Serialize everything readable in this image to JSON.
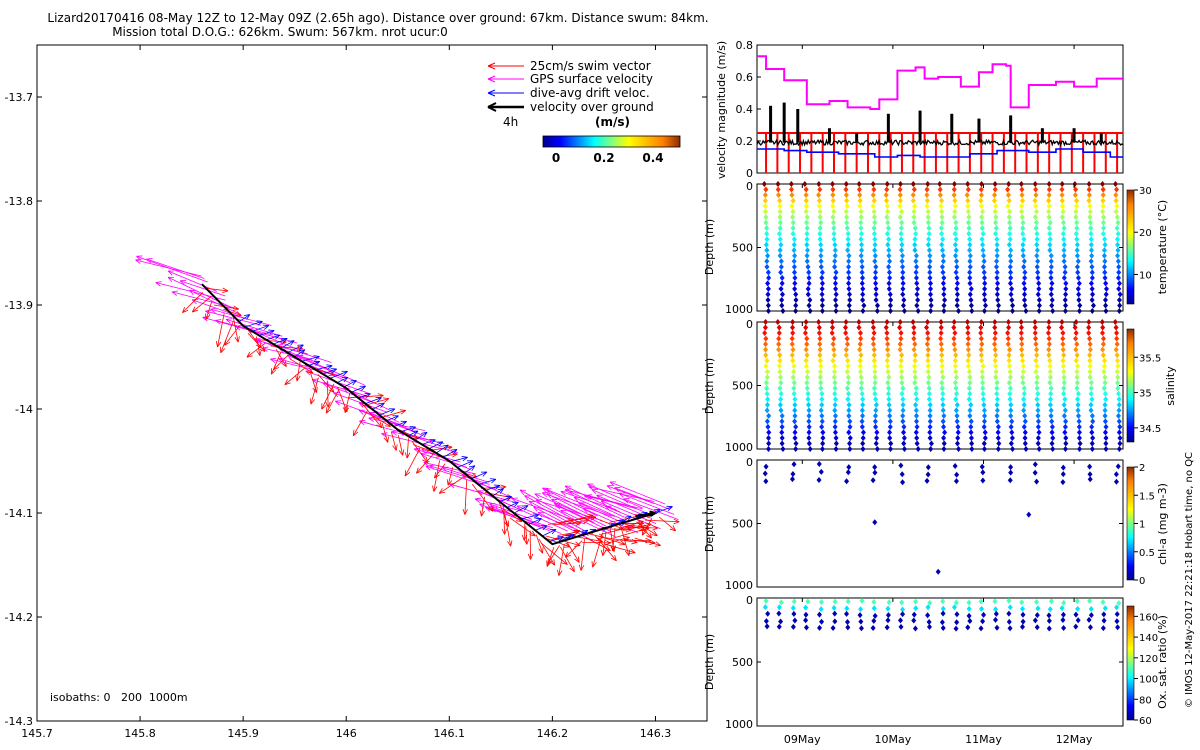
{
  "title": {
    "line1": "Lizard20170416 08-May 12Z to 12-May 09Z (2.65h ago). Distance over ground: 67km. Distance swum: 84km.",
    "line2": "Mission total D.O.G.: 626km. Swum: 567km. nrot ucur:0"
  },
  "map": {
    "legend": {
      "swim": "25cm/s swim vector",
      "gps": "GPS surface velocity",
      "drift": "dive-avg drift veloc.",
      "vog": "velocity over ground",
      "interval": "4h",
      "colorbar_unit": "(m/s)",
      "colorbar_ticks": [
        "0",
        "0.2",
        "0.4"
      ]
    },
    "isobaths_label": "isobaths: 0   200  1000m",
    "colors": {
      "swim": "#ff0000",
      "gps": "#ff00ff",
      "drift": "#0000ff",
      "vog": "#000000"
    }
  },
  "right_labels": {
    "vel_ylabel": "velocity magnitude (m/s)",
    "depth_ylabel": "Depth (m)",
    "temp_cbar": "temperature (°C)",
    "sal_cbar": "salinity",
    "chl_cbar": "chl-a (mg m-3)",
    "ox_cbar": "Ox. sat. ratio (%)",
    "footer": "© IMOS 12-May-2017 22:21:18 Hobart time, no QC"
  },
  "chart_data": [
    {
      "type": "vector-track",
      "name": "map",
      "xlim": [
        145.7,
        146.35
      ],
      "ylim": [
        -14.3,
        -13.65
      ],
      "xticks": [
        145.7,
        145.8,
        145.9,
        146,
        146.1,
        146.2,
        146.3
      ],
      "xtick_labels": [
        "145.7",
        "145.8",
        "145.9",
        "146",
        "146.1",
        "146.2",
        "146.3"
      ],
      "yticks": [
        -13.7,
        -13.8,
        -13.9,
        -14,
        -14.1,
        -14.2,
        -14.3
      ],
      "ytick_labels": [
        "-13.7",
        "-13.8",
        "-13.9",
        "-14",
        "-14.1",
        "-14.2",
        "-14.3"
      ],
      "track": [
        [
          145.86,
          -13.88
        ],
        [
          145.9,
          -13.92
        ],
        [
          145.95,
          -13.95
        ],
        [
          146.0,
          -13.98
        ],
        [
          146.05,
          -14.02
        ],
        [
          146.1,
          -14.05
        ],
        [
          146.15,
          -14.09
        ],
        [
          146.2,
          -14.13
        ],
        [
          146.25,
          -14.115
        ],
        [
          146.3,
          -14.1
        ]
      ]
    },
    {
      "type": "line",
      "name": "velocity magnitude",
      "xlim": [
        0,
        4.04
      ],
      "xtick_pos": [
        0.5,
        1.5,
        2.5,
        3.5
      ],
      "xtick_labels": [
        "09May",
        "10May",
        "11May",
        "12May"
      ],
      "ylim": [
        0,
        0.8
      ],
      "yticks": [
        0,
        0.2,
        0.4,
        0.6,
        0.8
      ],
      "ytick_labels": [
        "0",
        "0.2",
        "0.4",
        "0.6",
        "0.8"
      ],
      "series": [
        {
          "color": "#ff00ff",
          "x": [
            0,
            0.1,
            0.1,
            0.3,
            0.3,
            0.55,
            0.55,
            0.8,
            0.8,
            1.0,
            1.0,
            1.25,
            1.25,
            1.35,
            1.35,
            1.55,
            1.55,
            1.75,
            1.75,
            1.85,
            1.85,
            2.0,
            2.0,
            2.25,
            2.25,
            2.45,
            2.45,
            2.6,
            2.6,
            2.75,
            2.75,
            2.8,
            2.8,
            3.0,
            3.0,
            3.3,
            3.3,
            3.5,
            3.5,
            3.75,
            3.75,
            4.04
          ],
          "y": [
            0.73,
            0.73,
            0.65,
            0.65,
            0.58,
            0.58,
            0.43,
            0.43,
            0.45,
            0.45,
            0.41,
            0.41,
            0.4,
            0.4,
            0.46,
            0.46,
            0.64,
            0.64,
            0.66,
            0.66,
            0.59,
            0.59,
            0.6,
            0.6,
            0.54,
            0.54,
            0.63,
            0.63,
            0.68,
            0.68,
            0.67,
            0.67,
            0.41,
            0.41,
            0.55,
            0.55,
            0.57,
            0.57,
            0.54,
            0.54,
            0.59,
            0.59
          ]
        },
        {
          "color": "#0000ff",
          "x": [
            0,
            0.3,
            0.3,
            0.55,
            0.55,
            0.9,
            0.9,
            1.3,
            1.3,
            1.55,
            1.55,
            1.8,
            1.8,
            2.35,
            2.35,
            2.65,
            2.65,
            3.0,
            3.0,
            3.3,
            3.3,
            3.6,
            3.6,
            3.9,
            3.9,
            4.04
          ],
          "y": [
            0.15,
            0.15,
            0.14,
            0.14,
            0.13,
            0.13,
            0.12,
            0.12,
            0.1,
            0.1,
            0.11,
            0.11,
            0.1,
            0.1,
            0.12,
            0.12,
            0.14,
            0.14,
            0.13,
            0.13,
            0.15,
            0.15,
            0.13,
            0.13,
            0.1,
            0.1
          ]
        },
        {
          "color": "#ff0000",
          "type": "impulses",
          "baseline": 0.25,
          "bottom": 0.0,
          "x_spacing": 0.125
        },
        {
          "color": "#000000",
          "baseline": 0.19,
          "spike_x": [
            0.15,
            0.3,
            0.45,
            0.8,
            1.1,
            1.45,
            1.8,
            2.15,
            2.45,
            2.8,
            3.15,
            3.5,
            3.8
          ],
          "spike_y": [
            0.42,
            0.44,
            0.4,
            0.28,
            0.25,
            0.37,
            0.39,
            0.37,
            0.34,
            0.36,
            0.28,
            0.28,
            0.25
          ]
        }
      ]
    },
    {
      "type": "scatter",
      "name": "temperature",
      "ylim": [
        0,
        1000
      ],
      "yticks": [
        0,
        500,
        1000
      ],
      "clim": [
        3,
        30
      ],
      "cticks": [
        10,
        20,
        30
      ],
      "ctick_labels": [
        "10",
        "20",
        "30"
      ],
      "profiles": 27,
      "max_depth": 1000
    },
    {
      "type": "scatter",
      "name": "salinity",
      "ylim": [
        0,
        1000
      ],
      "yticks": [
        0,
        500,
        1000
      ],
      "clim": [
        34.3,
        35.9
      ],
      "cticks": [
        34.5,
        35,
        35.5
      ],
      "ctick_labels": [
        "34.5",
        "35",
        "35.5"
      ],
      "profiles": 27,
      "max_depth": 1000
    },
    {
      "type": "scatter",
      "name": "chl-a",
      "ylim": [
        0,
        1000
      ],
      "yticks": [
        0,
        500,
        1000
      ],
      "clim": [
        0,
        2
      ],
      "cticks": [
        0,
        0.5,
        1,
        1.5,
        2
      ],
      "ctick_labels": [
        "0",
        "0.5",
        "1",
        "1.5",
        "2"
      ],
      "outliers": [
        [
          1.3,
          490
        ],
        [
          2.0,
          880
        ],
        [
          3.0,
          430
        ]
      ]
    },
    {
      "type": "scatter",
      "name": "oxygen",
      "ylim": [
        0,
        1000
      ],
      "yticks": [
        0,
        500,
        1000
      ],
      "clim": [
        60,
        170
      ],
      "cticks": [
        60,
        80,
        100,
        120,
        140,
        160
      ],
      "ctick_labels": [
        "60",
        "80",
        "100",
        "120",
        "140",
        "160"
      ]
    }
  ]
}
